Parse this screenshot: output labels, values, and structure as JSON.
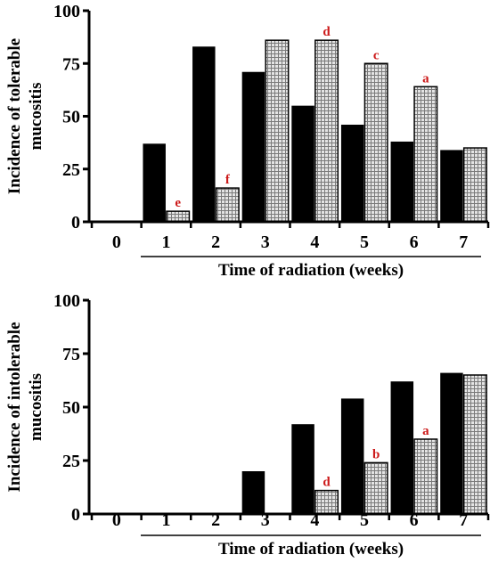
{
  "chart_data": [
    {
      "type": "bar",
      "ylabel_lines": [
        "Incidence of  tolerable",
        "mucositis"
      ],
      "xlabel": "Time of radiation (weeks)",
      "categories": [
        "0",
        "1",
        "2",
        "3",
        "4",
        "5",
        "6",
        "7"
      ],
      "ylim": [
        0,
        100
      ],
      "yticks": [
        "0",
        "25",
        "50",
        "75",
        "100"
      ],
      "series": [
        {
          "color": "#000000",
          "pattern": "solid",
          "values": [
            0,
            37,
            83,
            71,
            55,
            46,
            38,
            34
          ]
        },
        {
          "color": "#bbbbbb",
          "pattern": "grid",
          "values": [
            0,
            5,
            16,
            86,
            86,
            75,
            64,
            35
          ]
        }
      ],
      "annotations": [
        {
          "category": "1",
          "label": "e"
        },
        {
          "category": "2",
          "label": "f"
        },
        {
          "category": "4",
          "label": "d"
        },
        {
          "category": "5",
          "label": "c"
        },
        {
          "category": "6",
          "label": "a"
        }
      ],
      "grid": false,
      "legend": "none",
      "annotation_color": "#cc1a1a"
    },
    {
      "type": "bar",
      "ylabel_lines": [
        "Incidence of  intolerable",
        "mucositis"
      ],
      "xlabel": "Time of radiation (weeks)",
      "categories": [
        "0",
        "1",
        "2",
        "3",
        "4",
        "5",
        "6",
        "7"
      ],
      "ylim": [
        0,
        100
      ],
      "yticks": [
        "0",
        "25",
        "50",
        "75",
        "100"
      ],
      "series": [
        {
          "color": "#000000",
          "pattern": "solid",
          "values": [
            0,
            0,
            0,
            20,
            42,
            54,
            62,
            66
          ]
        },
        {
          "color": "#bbbbbb",
          "pattern": "grid",
          "values": [
            0,
            0,
            0,
            0,
            11,
            24,
            35,
            65
          ]
        }
      ],
      "annotations": [
        {
          "category": "4",
          "label": "d"
        },
        {
          "category": "5",
          "label": "b"
        },
        {
          "category": "6",
          "label": "a"
        }
      ],
      "grid": false,
      "legend": "none",
      "annotation_color": "#cc1a1a"
    }
  ]
}
